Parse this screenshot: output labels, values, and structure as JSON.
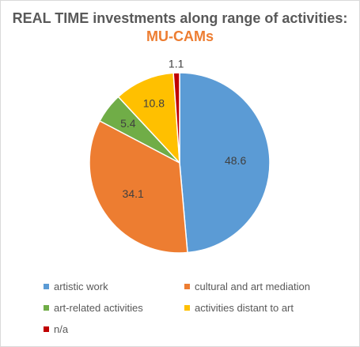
{
  "chart_data": {
    "type": "pie",
    "title_prefix": "REAL TIME investments along range of activities: ",
    "title_highlight": "MU-CAMs",
    "slices": [
      {
        "label": "artistic work",
        "value": 48.6,
        "color": "#5b9bd5"
      },
      {
        "label": "cultural and art mediation",
        "value": 34.1,
        "color": "#ed7d31"
      },
      {
        "label": "art-related activities",
        "value": 5.4,
        "color": "#70ad47"
      },
      {
        "label": "activities distant to art",
        "value": 10.8,
        "color": "#ffc000"
      },
      {
        "label": "n/a",
        "value": 1.1,
        "color": "#c00000"
      }
    ],
    "legend_position": "bottom"
  }
}
